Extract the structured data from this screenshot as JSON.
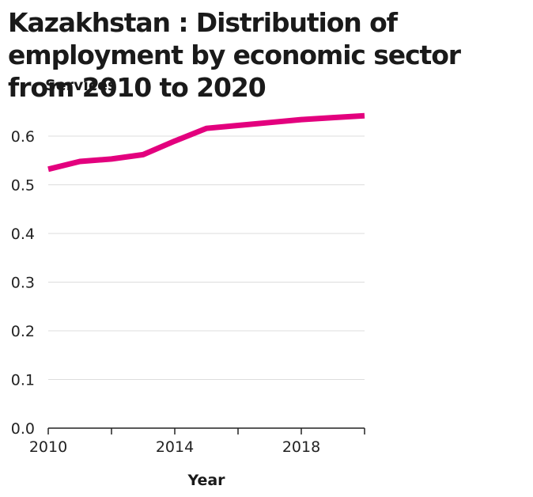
{
  "chart_data": {
    "type": "line",
    "title": "Kazakhstan : Distribution of employment by economic sector from 2010 to 2020",
    "xlabel": "Year",
    "ylabel": "Services",
    "x": [
      2010,
      2011,
      2012,
      2013,
      2014,
      2015,
      2016,
      2017,
      2018,
      2019,
      2020
    ],
    "series": [
      {
        "values": [
          0.532,
          0.548,
          0.553,
          0.562,
          0.59,
          0.616,
          0.622,
          0.628,
          0.634,
          0.638,
          0.642
        ],
        "color": "#e3007e"
      }
    ],
    "xlim": [
      2010,
      2020
    ],
    "ylim": [
      0,
      0.6
    ],
    "x_ticks": [
      2010,
      2012,
      2014,
      2016,
      2018,
      2020
    ],
    "x_tick_labels": [
      "2010",
      "",
      "2014",
      "",
      "2018",
      ""
    ],
    "y_ticks": [
      0,
      0.1,
      0.2,
      0.3,
      0.4,
      0.5,
      0.6
    ],
    "y_tick_labels": [
      "0.0",
      "0.1",
      "0.2",
      "0.3",
      "0.4",
      "0.5",
      "0.6"
    ],
    "grid": "horizontal",
    "colors": {
      "line": "#e3007e",
      "grid": "#dddddd",
      "axis": "#222222",
      "text": "#1a1a1a"
    }
  }
}
